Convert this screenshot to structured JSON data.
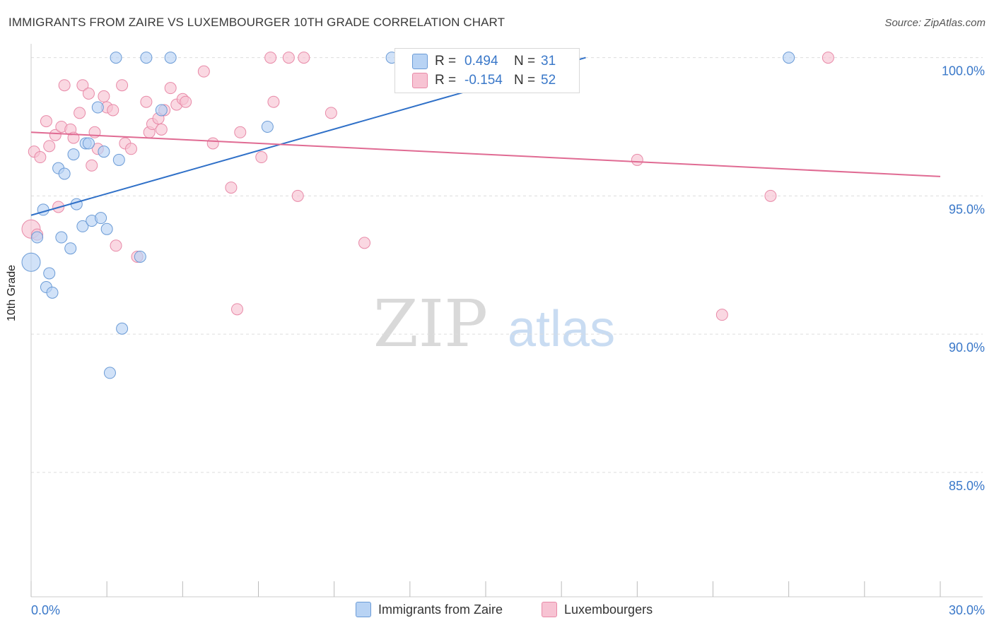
{
  "title": "IMMIGRANTS FROM ZAIRE VS LUXEMBOURGER 10TH GRADE CORRELATION CHART",
  "source": "Source: ZipAtlas.com",
  "watermark": {
    "zip": "ZIP",
    "atlas": "atlas"
  },
  "colors": {
    "blue_fill": "#b8d3f4",
    "blue_stroke": "#6b9bd6",
    "blue_line": "#2f70c8",
    "pink_fill": "#f7c3d3",
    "pink_stroke": "#e88aa8",
    "pink_line": "#e06b93",
    "tick_label": "#3a78c9",
    "grid": "#dddddd"
  },
  "legend_top": {
    "rows": [
      {
        "r_label": "R =",
        "r_value": "0.494",
        "n_label": "N =",
        "n_value": "31",
        "series": "blue"
      },
      {
        "r_label": "R =",
        "r_value": "-0.154",
        "n_label": "N =",
        "n_value": "52",
        "series": "pink"
      }
    ]
  },
  "legend_bottom": [
    "Immigrants from Zaire",
    "Luxembourgers"
  ],
  "chart_data": {
    "type": "scatter",
    "title": "IMMIGRANTS FROM ZAIRE VS LUXEMBOURGER 10TH GRADE CORRELATION CHART",
    "xlabel": "",
    "ylabel": "10th Grade",
    "xlim": [
      0,
      30
    ],
    "ylim": [
      80.5,
      100.5
    ],
    "x_tick_labels": [
      "0.0%",
      "30.0%"
    ],
    "y_ticks": [
      85,
      90,
      95,
      100
    ],
    "y_tick_labels": [
      "85.0%",
      "90.0%",
      "95.0%",
      "100.0%"
    ],
    "series": [
      {
        "name": "Immigrants from Zaire",
        "color": "blue",
        "points": [
          [
            0.0,
            92.6
          ],
          [
            0.2,
            93.5
          ],
          [
            0.4,
            94.5
          ],
          [
            0.5,
            91.7
          ],
          [
            0.6,
            92.2
          ],
          [
            0.7,
            91.5
          ],
          [
            0.9,
            96.0
          ],
          [
            1.0,
            93.5
          ],
          [
            1.1,
            95.8
          ],
          [
            1.3,
            93.1
          ],
          [
            1.4,
            96.5
          ],
          [
            1.5,
            94.7
          ],
          [
            1.7,
            93.9
          ],
          [
            1.8,
            96.9
          ],
          [
            1.9,
            96.9
          ],
          [
            2.0,
            94.1
          ],
          [
            2.2,
            98.2
          ],
          [
            2.3,
            94.2
          ],
          [
            2.4,
            96.6
          ],
          [
            2.5,
            93.8
          ],
          [
            2.6,
            88.6
          ],
          [
            2.8,
            100.0
          ],
          [
            2.9,
            96.3
          ],
          [
            3.0,
            90.2
          ],
          [
            3.6,
            92.8
          ],
          [
            3.8,
            100.0
          ],
          [
            4.3,
            98.1
          ],
          [
            4.6,
            100.0
          ],
          [
            7.8,
            97.5
          ],
          [
            11.9,
            100.0
          ],
          [
            25.0,
            100.0
          ]
        ],
        "sizes": [
          24,
          14,
          14,
          14,
          14,
          14,
          14,
          14,
          14,
          14,
          14,
          14,
          14,
          14,
          14,
          14,
          14,
          14,
          14,
          14,
          14,
          14,
          14,
          14,
          14,
          14,
          14,
          14,
          14,
          14,
          14
        ],
        "trend": {
          "x0": 0.0,
          "y0": 94.3,
          "x1": 18.3,
          "y1": 100.0
        }
      },
      {
        "name": "Luxembourgers",
        "color": "pink",
        "points": [
          [
            0.0,
            93.8
          ],
          [
            0.1,
            96.6
          ],
          [
            0.2,
            93.6
          ],
          [
            0.3,
            96.4
          ],
          [
            0.5,
            97.7
          ],
          [
            0.6,
            96.8
          ],
          [
            0.8,
            97.2
          ],
          [
            0.9,
            94.6
          ],
          [
            1.0,
            97.5
          ],
          [
            1.1,
            99.0
          ],
          [
            1.3,
            97.4
          ],
          [
            1.4,
            97.1
          ],
          [
            1.6,
            98.0
          ],
          [
            1.7,
            99.0
          ],
          [
            1.9,
            98.7
          ],
          [
            2.0,
            96.1
          ],
          [
            2.1,
            97.3
          ],
          [
            2.2,
            96.7
          ],
          [
            2.4,
            98.6
          ],
          [
            2.5,
            98.2
          ],
          [
            2.7,
            98.1
          ],
          [
            2.8,
            93.2
          ],
          [
            3.0,
            99.0
          ],
          [
            3.1,
            96.9
          ],
          [
            3.3,
            96.7
          ],
          [
            3.5,
            92.8
          ],
          [
            3.8,
            98.4
          ],
          [
            3.9,
            97.3
          ],
          [
            4.0,
            97.6
          ],
          [
            4.2,
            97.8
          ],
          [
            4.3,
            97.4
          ],
          [
            4.4,
            98.1
          ],
          [
            4.6,
            98.9
          ],
          [
            4.8,
            98.3
          ],
          [
            5.0,
            98.5
          ],
          [
            5.1,
            98.4
          ],
          [
            5.7,
            99.5
          ],
          [
            6.0,
            96.9
          ],
          [
            6.6,
            95.3
          ],
          [
            6.8,
            90.9
          ],
          [
            6.9,
            97.3
          ],
          [
            7.6,
            96.4
          ],
          [
            7.9,
            100.0
          ],
          [
            8.0,
            98.4
          ],
          [
            8.5,
            100.0
          ],
          [
            8.8,
            95.0
          ],
          [
            9.0,
            100.0
          ],
          [
            9.9,
            98.0
          ],
          [
            11.0,
            93.3
          ],
          [
            20.0,
            96.3
          ],
          [
            22.8,
            90.7
          ],
          [
            24.4,
            95.0
          ]
        ],
        "sizes": [
          24,
          14,
          14,
          14,
          14,
          14,
          14,
          14,
          14,
          14,
          14,
          14,
          14,
          14,
          14,
          14,
          14,
          14,
          14,
          14,
          14,
          14,
          14,
          14,
          14,
          14,
          14,
          14,
          14,
          14,
          14,
          14,
          14,
          14,
          14,
          14,
          14,
          14,
          14,
          14,
          14,
          14,
          14,
          14,
          14,
          14,
          14,
          14,
          14,
          14,
          14,
          14
        ],
        "trend": {
          "x0": 0.0,
          "y0": 97.3,
          "x1": 30.0,
          "y1": 95.7
        }
      }
    ],
    "extra_pink_points": [
      [
        26.3,
        100.0
      ]
    ]
  }
}
